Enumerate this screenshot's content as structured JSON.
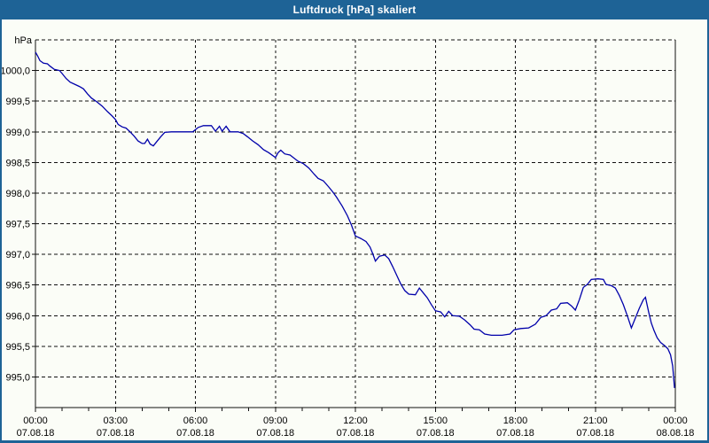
{
  "window": {
    "title": "Luftdruck [hPa] skaliert"
  },
  "colors": {
    "titlebar_bg": "#1e6396",
    "title_text": "#ffffff",
    "window_bg": "#fbfdf7",
    "axis_and_grid": "#111111",
    "label_text": "#000000",
    "line": "#0000aa"
  },
  "chart_data": {
    "type": "line",
    "title": "Luftdruck [hPa] skaliert",
    "ylabel": "hPa",
    "unit_label": "hPa",
    "grid": "dashed",
    "legend": "none",
    "y_axis": {
      "min": 994.5,
      "max": 1000.5,
      "gridline_step": 0.5,
      "tick_labels": [
        "1000,0",
        "999,5",
        "999,0",
        "998,5",
        "998,0",
        "997,5",
        "997,0",
        "996,5",
        "996,0",
        "995,5",
        "995,0"
      ],
      "tick_values": [
        1000.0,
        999.5,
        999.0,
        998.5,
        998.0,
        997.5,
        997.0,
        996.5,
        996.0,
        995.5,
        995.0
      ],
      "top_gridline_value": 1000.5
    },
    "x_axis": {
      "range_hours": [
        0,
        24
      ],
      "minor_tick_every_hours": 1,
      "major_tick_every_hours": 3,
      "label_ticks": [
        {
          "hour": 0,
          "time": "00:00",
          "date": "07.08.18"
        },
        {
          "hour": 3,
          "time": "03:00",
          "date": "07.08.18"
        },
        {
          "hour": 6,
          "time": "06:00",
          "date": "07.08.18"
        },
        {
          "hour": 9,
          "time": "09:00",
          "date": "07.08.18"
        },
        {
          "hour": 12,
          "time": "12:00",
          "date": "07.08.18"
        },
        {
          "hour": 15,
          "time": "15:00",
          "date": "07.08.18"
        },
        {
          "hour": 18,
          "time": "18:00",
          "date": "07.08.18"
        },
        {
          "hour": 21,
          "time": "21:00",
          "date": "07.08.18"
        },
        {
          "hour": 24,
          "time": "00:00",
          "date": "08.08.18"
        }
      ]
    },
    "series": [
      {
        "name": "Luftdruck",
        "color": "#0000aa",
        "points": [
          [
            0.0,
            1000.3
          ],
          [
            0.08,
            1000.24
          ],
          [
            0.17,
            1000.16
          ],
          [
            0.3,
            1000.12
          ],
          [
            0.45,
            1000.11
          ],
          [
            0.55,
            1000.07
          ],
          [
            0.7,
            1000.02
          ],
          [
            0.9,
            1000.0
          ],
          [
            1.0,
            999.95
          ],
          [
            1.15,
            999.87
          ],
          [
            1.3,
            999.81
          ],
          [
            1.5,
            999.77
          ],
          [
            1.65,
            999.74
          ],
          [
            1.8,
            999.7
          ],
          [
            1.95,
            999.62
          ],
          [
            2.1,
            999.55
          ],
          [
            2.3,
            999.49
          ],
          [
            2.5,
            999.42
          ],
          [
            2.7,
            999.33
          ],
          [
            2.85,
            999.27
          ],
          [
            3.0,
            999.2
          ],
          [
            3.1,
            999.12
          ],
          [
            3.25,
            999.08
          ],
          [
            3.4,
            999.06
          ],
          [
            3.55,
            999.0
          ],
          [
            3.7,
            998.93
          ],
          [
            3.85,
            998.85
          ],
          [
            4.0,
            998.81
          ],
          [
            4.1,
            998.81
          ],
          [
            4.2,
            998.88
          ],
          [
            4.3,
            998.8
          ],
          [
            4.42,
            998.77
          ],
          [
            4.55,
            998.84
          ],
          [
            4.7,
            998.92
          ],
          [
            4.85,
            998.99
          ],
          [
            5.1,
            999.0
          ],
          [
            5.5,
            999.0
          ],
          [
            5.9,
            999.0
          ],
          [
            6.1,
            999.07
          ],
          [
            6.3,
            999.1
          ],
          [
            6.6,
            999.1
          ],
          [
            6.75,
            999.01
          ],
          [
            6.9,
            999.09
          ],
          [
            7.0,
            999.01
          ],
          [
            7.15,
            999.09
          ],
          [
            7.3,
            999.0
          ],
          [
            7.6,
            999.0
          ],
          [
            7.8,
            998.97
          ],
          [
            7.95,
            998.92
          ],
          [
            8.15,
            998.85
          ],
          [
            8.35,
            998.79
          ],
          [
            8.55,
            998.71
          ],
          [
            8.75,
            998.66
          ],
          [
            9.0,
            998.58
          ],
          [
            9.1,
            998.66
          ],
          [
            9.2,
            998.7
          ],
          [
            9.35,
            998.64
          ],
          [
            9.55,
            998.62
          ],
          [
            9.7,
            998.57
          ],
          [
            9.85,
            998.52
          ],
          [
            10.05,
            998.48
          ],
          [
            10.25,
            998.41
          ],
          [
            10.45,
            998.31
          ],
          [
            10.6,
            998.24
          ],
          [
            10.8,
            998.2
          ],
          [
            11.0,
            998.1
          ],
          [
            11.15,
            998.02
          ],
          [
            11.3,
            997.93
          ],
          [
            11.5,
            997.79
          ],
          [
            11.7,
            997.63
          ],
          [
            11.85,
            997.48
          ],
          [
            12.0,
            997.3
          ],
          [
            12.2,
            997.26
          ],
          [
            12.4,
            997.21
          ],
          [
            12.55,
            997.12
          ],
          [
            12.65,
            997.01
          ],
          [
            12.75,
            996.89
          ],
          [
            12.9,
            996.97
          ],
          [
            13.1,
            996.99
          ],
          [
            13.25,
            996.93
          ],
          [
            13.4,
            996.8
          ],
          [
            13.55,
            996.66
          ],
          [
            13.7,
            996.52
          ],
          [
            13.85,
            996.41
          ],
          [
            14.0,
            996.35
          ],
          [
            14.25,
            996.34
          ],
          [
            14.4,
            996.45
          ],
          [
            14.55,
            996.37
          ],
          [
            14.7,
            996.29
          ],
          [
            14.85,
            996.18
          ],
          [
            15.0,
            996.08
          ],
          [
            15.2,
            996.06
          ],
          [
            15.35,
            995.98
          ],
          [
            15.5,
            996.07
          ],
          [
            15.65,
            996.0
          ],
          [
            15.9,
            995.99
          ],
          [
            16.1,
            995.93
          ],
          [
            16.3,
            995.85
          ],
          [
            16.45,
            995.78
          ],
          [
            16.65,
            995.77
          ],
          [
            16.85,
            995.7
          ],
          [
            17.1,
            995.68
          ],
          [
            17.5,
            995.68
          ],
          [
            17.8,
            995.7
          ],
          [
            17.95,
            995.77
          ],
          [
            18.2,
            995.79
          ],
          [
            18.5,
            995.8
          ],
          [
            18.75,
            995.86
          ],
          [
            18.95,
            995.97
          ],
          [
            19.15,
            996.0
          ],
          [
            19.35,
            996.09
          ],
          [
            19.55,
            996.11
          ],
          [
            19.7,
            996.2
          ],
          [
            19.95,
            996.21
          ],
          [
            20.1,
            996.16
          ],
          [
            20.25,
            996.09
          ],
          [
            20.4,
            996.26
          ],
          [
            20.55,
            996.46
          ],
          [
            20.7,
            996.51
          ],
          [
            20.85,
            996.59
          ],
          [
            21.1,
            996.6
          ],
          [
            21.3,
            996.59
          ],
          [
            21.4,
            996.51
          ],
          [
            21.6,
            996.49
          ],
          [
            21.75,
            996.45
          ],
          [
            21.9,
            996.33
          ],
          [
            22.05,
            996.18
          ],
          [
            22.2,
            996.0
          ],
          [
            22.35,
            995.8
          ],
          [
            22.5,
            995.96
          ],
          [
            22.65,
            996.12
          ],
          [
            22.8,
            996.26
          ],
          [
            22.88,
            996.3
          ],
          [
            23.0,
            996.06
          ],
          [
            23.1,
            995.88
          ],
          [
            23.2,
            995.76
          ],
          [
            23.32,
            995.64
          ],
          [
            23.45,
            995.56
          ],
          [
            23.6,
            995.51
          ],
          [
            23.72,
            995.46
          ],
          [
            23.82,
            995.36
          ],
          [
            23.9,
            995.18
          ],
          [
            23.97,
            994.82
          ]
        ]
      }
    ]
  }
}
